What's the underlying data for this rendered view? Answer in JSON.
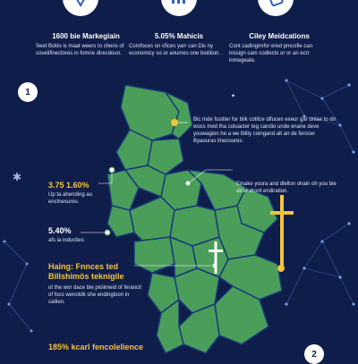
{
  "columns": [
    {
      "title": "1600 bie Markegiain",
      "text": "Seet Bcklo is maat weers to chens of covelifinectores in fomne direcdoun."
    },
    {
      "title": "5.05% Mahicis",
      "text": "Comfoces on cfices yarr can Dis ny economicy so or anumes one biolition."
    },
    {
      "title": "Ciley Meidcations",
      "text": "Cont cadingimfor ered pmcofie can inssign cam codlects or or an ecrr inmegeate."
    }
  ],
  "badges": {
    "left": "1",
    "bottom": "2"
  },
  "annotations": {
    "top_right": "Bic mde fostiter for bilk cotitce difucen exeur gar dnlae to do wocs med tha coluacter teg candio unde enane deve youwagion he a we lblity coingand alt an de ferocer Byaouras linecoures.",
    "mid_right": "Emake youra and dlellon ohain oh you bie alcer dront endiration."
  },
  "stats": [
    {
      "value": "3.75 1.60%",
      "text": "Up ta ahending au enctnesures."
    },
    {
      "value": "5.40%",
      "text": "afs ia inducties"
    },
    {
      "value": "Haing: Fnnces ted Billshimös teknigile",
      "text": "ot the wor dace bie pioiimeid of ferancit of focs wenotdk she endingloon in cailien."
    },
    {
      "value": "185% kcarl fencolelience",
      "text": ""
    }
  ],
  "colors": {
    "background": "#0f1d4a",
    "map": "#4a9e5a",
    "map_border": "#173a78",
    "accent": "#f5c33b",
    "icon": "#2e5fb8"
  }
}
